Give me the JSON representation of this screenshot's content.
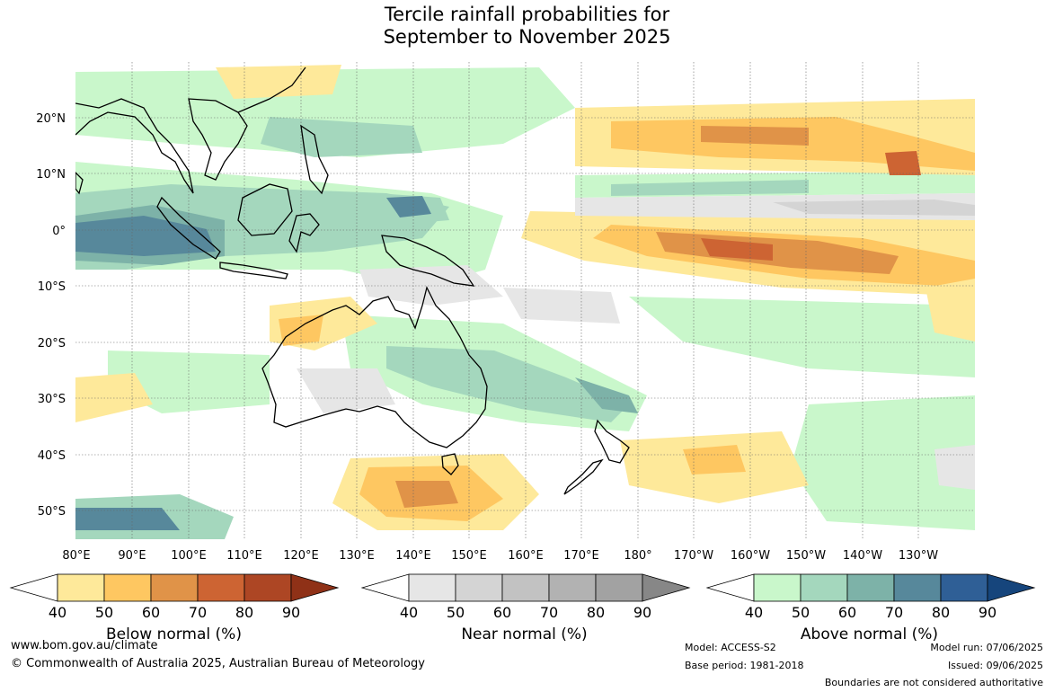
{
  "title": {
    "line1": "Tercile rainfall probabilities for",
    "line2": "September to November 2025"
  },
  "map": {
    "lat_labels": [
      "20°N",
      "10°N",
      "0°",
      "10°S",
      "20°S",
      "30°S",
      "40°S",
      "50°S"
    ],
    "lon_labels": [
      "80°E",
      "90°E",
      "100°E",
      "110°E",
      "120°E",
      "130°E",
      "140°E",
      "150°E",
      "160°E",
      "170°E",
      "180°",
      "170°W",
      "160°W",
      "150°W",
      "140°W",
      "130°W"
    ]
  },
  "colorbars": [
    {
      "name": "Below normal (%)",
      "ticks": [
        "40",
        "50",
        "60",
        "70",
        "80",
        "90"
      ],
      "colors": [
        "#ffffff",
        "#fee99a",
        "#fec761",
        "#e09348",
        "#cd6433",
        "#ad4624",
        "#8f3117"
      ]
    },
    {
      "name": "Near normal (%)",
      "ticks": [
        "40",
        "50",
        "60",
        "70",
        "80",
        "90"
      ],
      "colors": [
        "#ffffff",
        "#e6e6e6",
        "#d4d4d4",
        "#c2c2c2",
        "#b2b2b2",
        "#a2a2a2",
        "#878787"
      ]
    },
    {
      "name": "Above normal (%)",
      "ticks": [
        "40",
        "50",
        "60",
        "70",
        "80",
        "90"
      ],
      "colors": [
        "#ffffff",
        "#c9f7cb",
        "#a4d7bd",
        "#7db2a8",
        "#57889b",
        "#2f5f96",
        "#16457c"
      ]
    }
  ],
  "footer": {
    "url": "www.bom.gov.au/climate",
    "copyright": "© Commonwealth of Australia 2025, Australian Bureau of Meteorology",
    "model": "Model: ACCESS-S2",
    "base_period": "Base period: 1981-2018",
    "model_run": "Model run: 07/06/2025",
    "issued": "Issued: 09/06/2025",
    "disclaimer": "Boundaries are not considered authoritative"
  }
}
